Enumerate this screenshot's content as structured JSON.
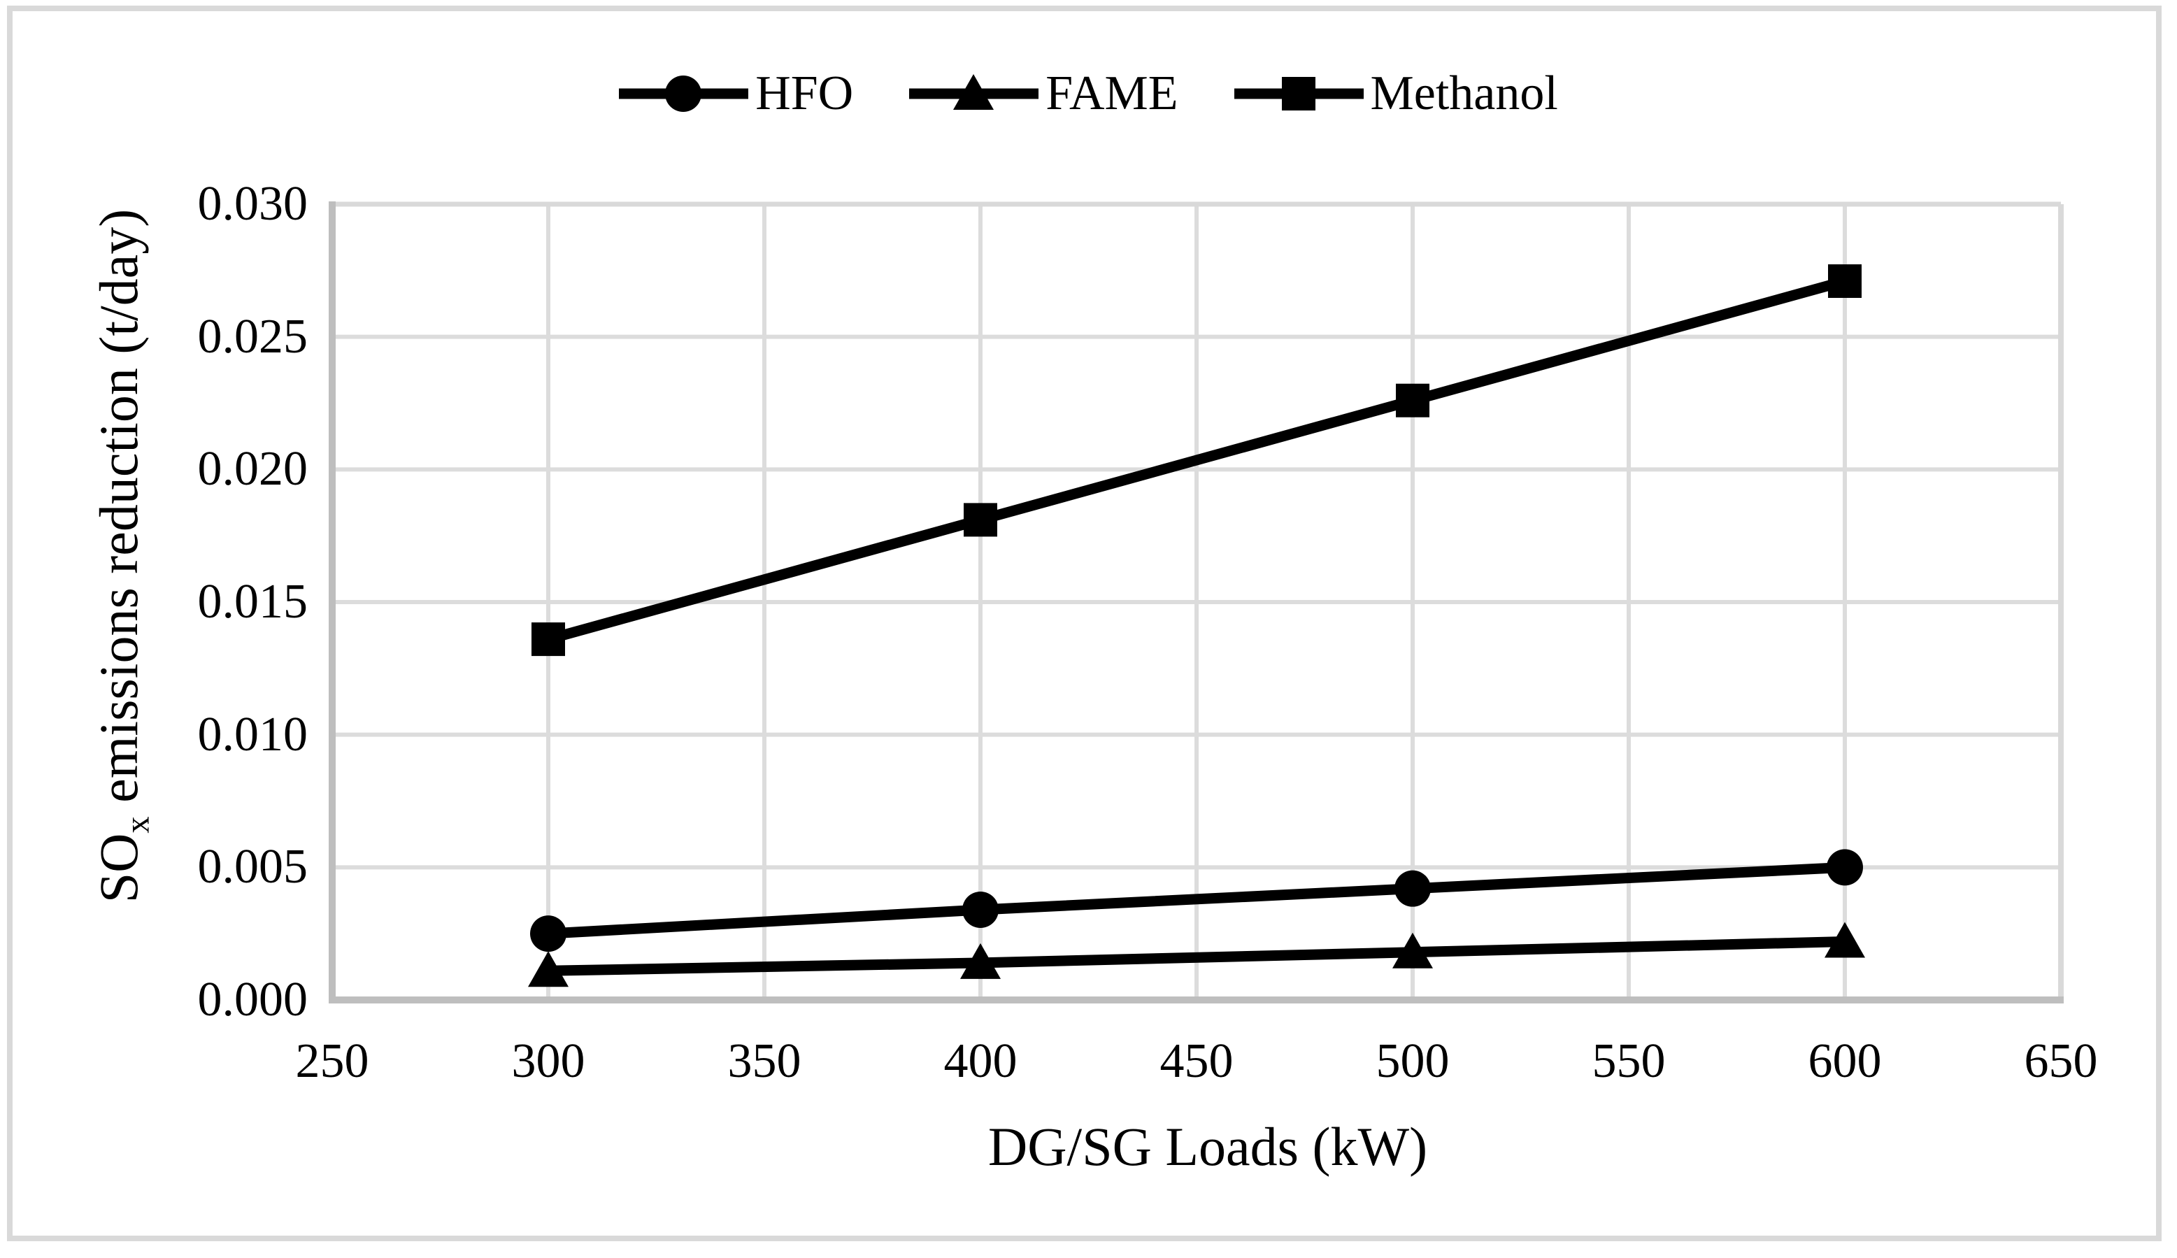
{
  "figure": {
    "y_axis_title": {
      "prefix": "SO",
      "subscript": "x",
      "suffix": " emissions reduction (t/day)"
    },
    "x_axis_title": "DG/SG Loads (kW)"
  },
  "chart_data": {
    "type": "line",
    "x": [
      300,
      400,
      500,
      600
    ],
    "series": [
      {
        "name": "HFO",
        "marker": "circle",
        "values": [
          0.0025,
          0.0034,
          0.0042,
          0.005
        ]
      },
      {
        "name": "FAME",
        "marker": "triangle",
        "values": [
          0.0011,
          0.0014,
          0.0018,
          0.0022
        ]
      },
      {
        "name": "Methanol",
        "marker": "square",
        "values": [
          0.0136,
          0.0181,
          0.0226,
          0.0271
        ]
      }
    ],
    "xlabel": "DG/SG Loads (kW)",
    "ylabel": "SOx emissions reduction (t/day)",
    "xlim": [
      250,
      650
    ],
    "ylim": [
      0,
      0.03
    ],
    "x_ticks": [
      250,
      300,
      350,
      400,
      450,
      500,
      550,
      600,
      650
    ],
    "x_tick_labels": [
      "250",
      "300",
      "350",
      "400",
      "450",
      "500",
      "550",
      "600",
      "650"
    ],
    "y_ticks": [
      0.0,
      0.005,
      0.01,
      0.015,
      0.02,
      0.025,
      0.03
    ],
    "y_tick_labels": [
      "0.000",
      "0.005",
      "0.010",
      "0.015",
      "0.020",
      "0.025",
      "0.030"
    ],
    "grid": true,
    "legend_position": "top-center",
    "colors": {
      "series": "#000000",
      "gridline": "#dcdcdc",
      "axis": "#bebebe",
      "plot_border": "#d9d9d9",
      "figure_border": "#d9d9d9",
      "text": "#000000"
    }
  }
}
